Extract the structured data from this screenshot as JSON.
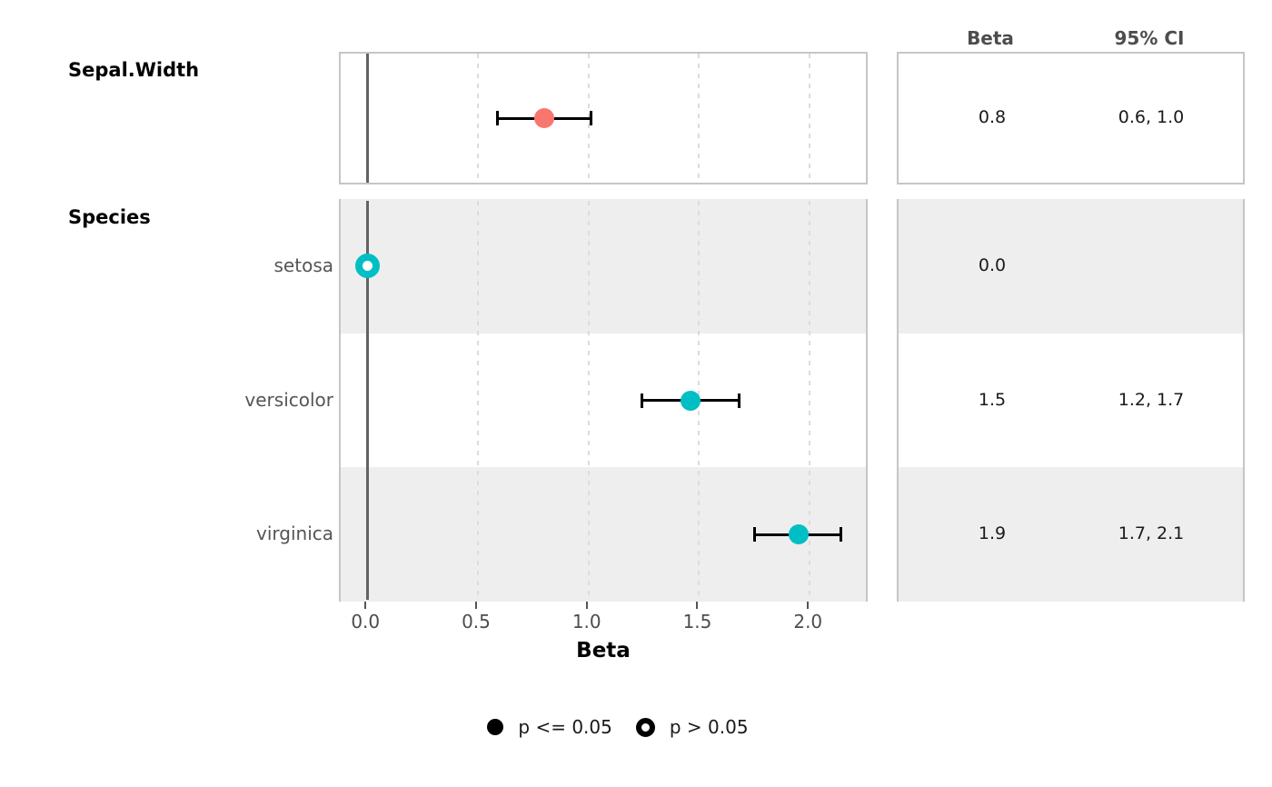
{
  "chart_data": {
    "type": "forest",
    "xlabel": "Beta",
    "x_ticks": [
      0.0,
      0.5,
      1.0,
      1.5,
      2.0
    ],
    "x_tick_labels": [
      "0.0",
      "0.5",
      "1.0",
      "1.5",
      "2.0"
    ],
    "xlim": [
      -0.12,
      2.27
    ],
    "zero_line_x": 0,
    "grid": "dashed-vertical-major",
    "legend_position": "bottom",
    "table_headers": {
      "beta": "Beta",
      "ci": "95% CI"
    },
    "legend": [
      {
        "marker": "filled-circle",
        "label": "p <= 0.05"
      },
      {
        "marker": "open-circle",
        "label": "p > 0.05"
      }
    ],
    "style": {
      "stripe_color": "#eeeeee",
      "panel_border_color": "#c6c6c6",
      "zero_line_color": "#636363",
      "errorbar_color": "#000000",
      "significant_color": "#F8766D",
      "species_color": "#00BFC4"
    },
    "panels": [
      {
        "group_label": "Sepal.Width",
        "rows": [
          {
            "level_label": "",
            "beta": 0.8,
            "ci_low": 0.59,
            "ci_high": 1.01,
            "beta_text": "0.8",
            "ci_text": "0.6, 1.0",
            "point_color": "#F8766D",
            "marker": "filled",
            "striped": false
          }
        ]
      },
      {
        "group_label": "Species",
        "rows": [
          {
            "level_label": "setosa",
            "beta": 0.0,
            "ci_low": null,
            "ci_high": null,
            "beta_text": "0.0",
            "ci_text": "",
            "point_color": "#00BFC4",
            "marker": "open",
            "striped": true
          },
          {
            "level_label": "versicolor",
            "beta": 1.46,
            "ci_low": 1.24,
            "ci_high": 1.68,
            "beta_text": "1.5",
            "ci_text": "1.2, 1.7",
            "point_color": "#00BFC4",
            "marker": "filled",
            "striped": false
          },
          {
            "level_label": "virginica",
            "beta": 1.95,
            "ci_low": 1.75,
            "ci_high": 2.14,
            "beta_text": "1.9",
            "ci_text": "1.7, 2.1",
            "point_color": "#00BFC4",
            "marker": "filled",
            "striped": true
          }
        ]
      }
    ]
  }
}
